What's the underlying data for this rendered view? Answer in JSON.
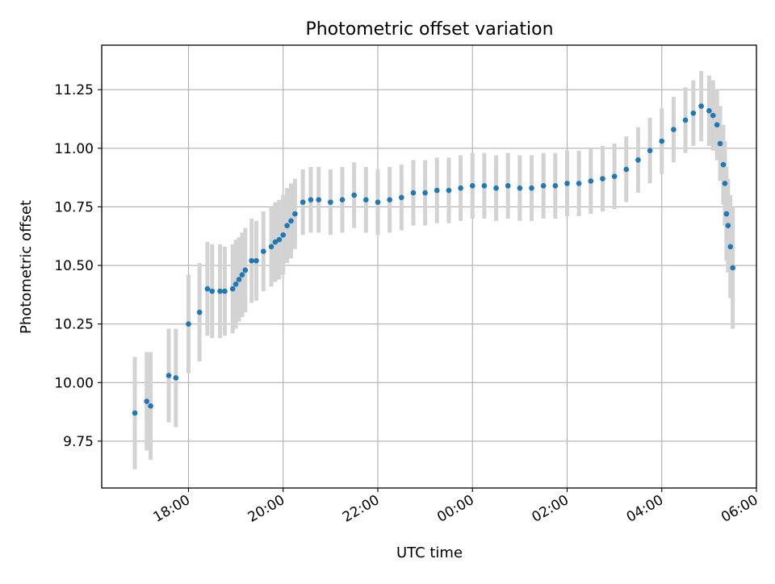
{
  "chart_data": {
    "type": "scatter",
    "title": "Photometric offset variation",
    "xlabel": "UTC time",
    "ylabel": "Photometric offset",
    "x_axis_type": "time",
    "x_ticks": [
      "18:00",
      "20:00",
      "22:00",
      "00:00",
      "02:00",
      "04:00",
      "06:00"
    ],
    "y_ticks": [
      "9.75",
      "10.00",
      "10.25",
      "10.50",
      "10.75",
      "11.00",
      "11.25"
    ],
    "xlim": [
      "16:10",
      "06:00"
    ],
    "ylim": [
      9.55,
      11.44
    ],
    "grid": true,
    "point_color": "#1f77b4",
    "errorbar_color": "#d3d3d3",
    "series": [
      {
        "x": [
          "16:52",
          "17:07",
          "17:12",
          "17:35",
          "17:44",
          "18:00",
          "18:14",
          "18:24",
          "18:30",
          "18:40",
          "18:46",
          "18:56",
          "19:00",
          "19:04",
          "19:08",
          "19:12",
          "19:20",
          "19:26",
          "19:35",
          "19:45",
          "19:50",
          "19:55",
          "20:00",
          "20:05",
          "20:10",
          "20:15",
          "20:25",
          "20:35",
          "20:45",
          "21:00",
          "21:15",
          "21:30",
          "21:45",
          "22:00",
          "22:15",
          "22:30",
          "22:45",
          "23:00",
          "23:15",
          "23:30",
          "23:45",
          "00:00",
          "00:15",
          "00:30",
          "00:45",
          "01:00",
          "01:15",
          "01:30",
          "01:45",
          "02:00",
          "02:15",
          "02:30",
          "02:45",
          "03:00",
          "03:15",
          "03:30",
          "03:45",
          "04:00",
          "04:15",
          "04:30",
          "04:40",
          "04:50",
          "05:00",
          "05:05",
          "05:10",
          "05:14",
          "05:18",
          "05:20",
          "05:22",
          "05:24",
          "05:27",
          "05:30"
        ],
        "y": [
          9.87,
          9.92,
          9.9,
          10.03,
          10.02,
          10.25,
          10.3,
          10.4,
          10.39,
          10.39,
          10.39,
          10.4,
          10.42,
          10.44,
          10.46,
          10.48,
          10.52,
          10.52,
          10.56,
          10.58,
          10.6,
          10.61,
          10.63,
          10.67,
          10.69,
          10.72,
          10.77,
          10.78,
          10.78,
          10.77,
          10.78,
          10.8,
          10.78,
          10.77,
          10.78,
          10.79,
          10.81,
          10.81,
          10.82,
          10.82,
          10.83,
          10.84,
          10.84,
          10.83,
          10.84,
          10.83,
          10.83,
          10.84,
          10.84,
          10.85,
          10.85,
          10.86,
          10.87,
          10.88,
          10.91,
          10.95,
          10.99,
          11.03,
          11.08,
          11.12,
          11.15,
          11.18,
          11.16,
          11.14,
          11.1,
          11.02,
          10.93,
          10.85,
          10.72,
          10.67,
          10.58,
          10.49
        ],
        "err": [
          0.24,
          0.21,
          0.23,
          0.2,
          0.21,
          0.21,
          0.21,
          0.2,
          0.2,
          0.2,
          0.19,
          0.19,
          0.19,
          0.18,
          0.18,
          0.18,
          0.18,
          0.17,
          0.17,
          0.17,
          0.17,
          0.17,
          0.17,
          0.16,
          0.16,
          0.15,
          0.14,
          0.14,
          0.14,
          0.14,
          0.14,
          0.14,
          0.14,
          0.14,
          0.14,
          0.14,
          0.14,
          0.14,
          0.14,
          0.14,
          0.14,
          0.14,
          0.14,
          0.14,
          0.14,
          0.14,
          0.14,
          0.14,
          0.14,
          0.14,
          0.14,
          0.14,
          0.14,
          0.14,
          0.14,
          0.14,
          0.14,
          0.14,
          0.14,
          0.14,
          0.14,
          0.15,
          0.15,
          0.15,
          0.15,
          0.16,
          0.17,
          0.18,
          0.2,
          0.2,
          0.22,
          0.26
        ]
      }
    ]
  }
}
